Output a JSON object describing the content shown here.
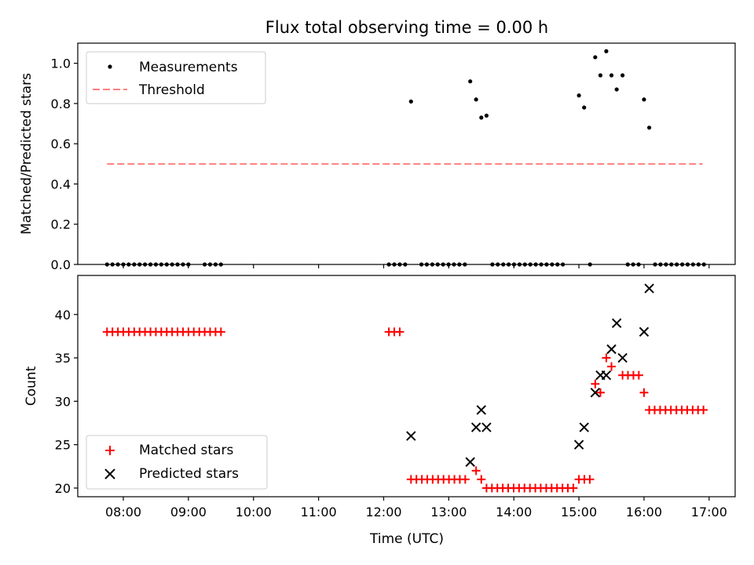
{
  "chart_data": {
    "type": "scatter",
    "title": "Flux total observing time = 0.00 h",
    "xlabel": "Time (UTC)",
    "x_range_hours": [
      7.3,
      17.4
    ],
    "x_ticks": [
      {
        "value": 8,
        "label": "08:00"
      },
      {
        "value": 9,
        "label": "09:00"
      },
      {
        "value": 10,
        "label": "10:00"
      },
      {
        "value": 11,
        "label": "11:00"
      },
      {
        "value": 12,
        "label": "12:00"
      },
      {
        "value": 13,
        "label": "13:00"
      },
      {
        "value": 14,
        "label": "14:00"
      },
      {
        "value": 15,
        "label": "15:00"
      },
      {
        "value": 16,
        "label": "16:00"
      },
      {
        "value": 17,
        "label": "17:00"
      }
    ],
    "top": {
      "ylabel": "Matched/Predicted stars",
      "ylim": [
        0,
        1.1
      ],
      "y_ticks": [
        {
          "value": 0.0,
          "label": "0.0"
        },
        {
          "value": 0.2,
          "label": "0.2"
        },
        {
          "value": 0.4,
          "label": "0.4"
        },
        {
          "value": 0.6,
          "label": "0.6"
        },
        {
          "value": 0.8,
          "label": "0.8"
        },
        {
          "value": 1.0,
          "label": "1.0"
        }
      ],
      "legend": [
        "Measurements",
        "Threshold"
      ],
      "threshold": {
        "value": 0.5,
        "x_start": 7.75,
        "x_end": 16.9,
        "color": "#ff7f7f"
      },
      "measurements": [
        {
          "x": 12.42,
          "y": 0.81
        },
        {
          "x": 13.33,
          "y": 0.91
        },
        {
          "x": 13.42,
          "y": 0.82
        },
        {
          "x": 13.5,
          "y": 0.73
        },
        {
          "x": 13.58,
          "y": 0.74
        },
        {
          "x": 15.0,
          "y": 0.84
        },
        {
          "x": 15.08,
          "y": 0.78
        },
        {
          "x": 15.25,
          "y": 1.03
        },
        {
          "x": 15.33,
          "y": 0.94
        },
        {
          "x": 15.42,
          "y": 1.06
        },
        {
          "x": 15.5,
          "y": 0.94
        },
        {
          "x": 15.58,
          "y": 0.87
        },
        {
          "x": 15.67,
          "y": 0.94
        },
        {
          "x": 16.0,
          "y": 0.82
        },
        {
          "x": 16.08,
          "y": 0.68
        }
      ],
      "zero_ranges": [
        [
          7.75,
          8.92
        ],
        [
          9.0,
          9.08
        ],
        [
          9.25,
          9.5
        ],
        [
          12.08,
          12.33
        ],
        [
          12.58,
          13.25
        ],
        [
          13.67,
          14.83
        ],
        [
          15.17,
          15.17
        ],
        [
          15.75,
          15.92
        ],
        [
          16.17,
          16.92
        ]
      ]
    },
    "bottom": {
      "ylabel": "Count",
      "ylim": [
        19,
        44.5
      ],
      "y_ticks": [
        {
          "value": 20,
          "label": "20"
        },
        {
          "value": 25,
          "label": "25"
        },
        {
          "value": 30,
          "label": "30"
        },
        {
          "value": 35,
          "label": "35"
        },
        {
          "value": 40,
          "label": "40"
        }
      ],
      "legend": [
        "Matched stars",
        "Predicted stars"
      ],
      "series": [
        {
          "name": "Matched stars",
          "marker": "plus",
          "color": "#ff0000",
          "runs": [
            {
              "from": 7.75,
              "to": 9.5,
              "value": 38
            },
            {
              "from": 12.08,
              "to": 12.25,
              "value": 38
            },
            {
              "from": 12.42,
              "to": 13.33,
              "value": 21
            },
            {
              "from": 13.42,
              "to": 13.42,
              "value": 22
            },
            {
              "from": 13.5,
              "to": 13.5,
              "value": 21
            },
            {
              "from": 13.58,
              "to": 14.92,
              "value": 20
            },
            {
              "from": 15.0,
              "to": 15.17,
              "value": 21
            },
            {
              "from": 15.25,
              "to": 15.25,
              "value": 32
            },
            {
              "from": 15.33,
              "to": 15.33,
              "value": 31
            },
            {
              "from": 15.42,
              "to": 15.42,
              "value": 35
            },
            {
              "from": 15.5,
              "to": 15.58,
              "value": 34
            },
            {
              "from": 15.67,
              "to": 15.92,
              "value": 33
            },
            {
              "from": 16.0,
              "to": 16.0,
              "value": 31
            },
            {
              "from": 16.08,
              "to": 16.92,
              "value": 29
            }
          ]
        },
        {
          "name": "Predicted stars",
          "marker": "x",
          "color": "#000000",
          "points": [
            {
              "x": 12.42,
              "y": 26
            },
            {
              "x": 13.33,
              "y": 23
            },
            {
              "x": 13.42,
              "y": 27
            },
            {
              "x": 13.5,
              "y": 29
            },
            {
              "x": 13.58,
              "y": 27
            },
            {
              "x": 15.0,
              "y": 25
            },
            {
              "x": 15.08,
              "y": 27
            },
            {
              "x": 15.25,
              "y": 31
            },
            {
              "x": 15.33,
              "y": 33
            },
            {
              "x": 15.42,
              "y": 33
            },
            {
              "x": 15.5,
              "y": 36
            },
            {
              "x": 15.58,
              "y": 39
            },
            {
              "x": 15.67,
              "y": 35
            },
            {
              "x": 16.0,
              "y": 38
            },
            {
              "x": 16.08,
              "y": 43
            }
          ]
        }
      ]
    }
  }
}
